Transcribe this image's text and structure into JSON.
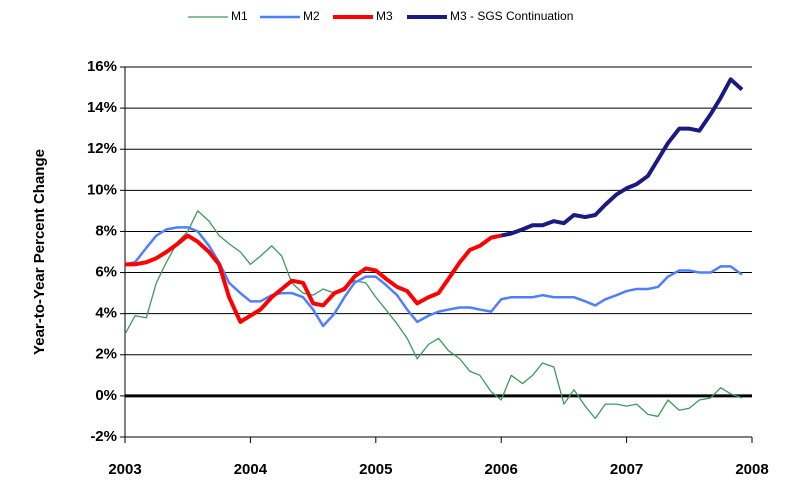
{
  "chart_data": {
    "type": "line",
    "ylabel": "Year-to-Year Percent Change",
    "x": [
      2003.0,
      2003.08,
      2003.17,
      2003.25,
      2003.33,
      2003.42,
      2003.5,
      2003.58,
      2003.67,
      2003.75,
      2003.83,
      2003.92,
      2004.0,
      2004.08,
      2004.17,
      2004.25,
      2004.33,
      2004.42,
      2004.5,
      2004.58,
      2004.67,
      2004.75,
      2004.83,
      2004.92,
      2005.0,
      2005.08,
      2005.17,
      2005.25,
      2005.33,
      2005.42,
      2005.5,
      2005.58,
      2005.67,
      2005.75,
      2005.83,
      2005.92,
      2006.0,
      2006.08,
      2006.17,
      2006.25,
      2006.33,
      2006.42,
      2006.5,
      2006.58,
      2006.67,
      2006.75,
      2006.83,
      2006.92,
      2007.0,
      2007.08,
      2007.17,
      2007.25,
      2007.33,
      2007.42,
      2007.5,
      2007.58,
      2007.67,
      2007.75,
      2007.83,
      2007.92
    ],
    "series": [
      {
        "name": "M1",
        "color": "#3c9a5c",
        "values": [
          3.0,
          3.9,
          3.8,
          5.5,
          6.5,
          7.5,
          8.0,
          9.0,
          8.5,
          7.8,
          7.4,
          7.0,
          6.4,
          6.8,
          7.3,
          6.8,
          5.5,
          5.0,
          4.9,
          5.2,
          5.0,
          5.3,
          5.6,
          5.5,
          4.8,
          4.2,
          3.5,
          2.8,
          1.8,
          2.5,
          2.8,
          2.2,
          1.8,
          1.2,
          1.0,
          0.2,
          -0.2,
          1.0,
          0.6,
          1.0,
          1.6,
          1.4,
          -0.4,
          0.3,
          -0.5,
          -1.1,
          -0.4,
          -0.4,
          -0.5,
          -0.4,
          -0.9,
          -1.0,
          -0.2,
          -0.7,
          -0.6,
          -0.2,
          -0.1,
          0.4,
          0.1,
          -0.1
        ]
      },
      {
        "name": "M2",
        "color": "#4d7fff",
        "values": [
          6.4,
          6.5,
          7.2,
          7.8,
          8.1,
          8.2,
          8.2,
          8.0,
          7.3,
          6.5,
          5.5,
          5.0,
          4.6,
          4.6,
          4.9,
          5.0,
          5.0,
          4.8,
          4.2,
          3.4,
          4.0,
          4.8,
          5.5,
          5.8,
          5.8,
          5.4,
          4.9,
          4.2,
          3.6,
          3.9,
          4.1,
          4.2,
          4.3,
          4.3,
          4.2,
          4.1,
          4.7,
          4.8,
          4.8,
          4.8,
          4.9,
          4.8,
          4.8,
          4.8,
          4.6,
          4.4,
          4.7,
          4.9,
          5.1,
          5.2,
          5.2,
          5.3,
          5.8,
          6.1,
          6.1,
          6.0,
          6.0,
          6.3,
          6.3,
          5.9
        ]
      },
      {
        "name": "M3",
        "color": "#ff0000",
        "values": [
          6.4,
          6.4,
          6.5,
          6.7,
          7.0,
          7.4,
          7.8,
          7.5,
          7.0,
          6.4,
          4.8,
          3.6,
          3.9,
          4.2,
          4.8,
          5.2,
          5.6,
          5.5,
          4.5,
          4.4,
          5.0,
          5.2,
          5.8,
          6.2,
          6.1,
          5.7,
          5.3,
          5.1,
          4.5,
          4.8,
          5.0,
          5.7,
          6.5,
          7.1,
          7.3,
          7.7,
          7.8,
          null,
          null,
          null,
          null,
          null,
          null,
          null,
          null,
          null,
          null,
          null,
          null,
          null,
          null,
          null,
          null,
          null,
          null,
          null,
          null,
          null,
          null,
          null
        ]
      },
      {
        "name": "M3 - SGS Continuation",
        "color": "#1a1a80",
        "values": [
          null,
          null,
          null,
          null,
          null,
          null,
          null,
          null,
          null,
          null,
          null,
          null,
          null,
          null,
          null,
          null,
          null,
          null,
          null,
          null,
          null,
          null,
          null,
          null,
          null,
          null,
          null,
          null,
          null,
          null,
          null,
          null,
          null,
          null,
          null,
          null,
          7.8,
          7.9,
          8.1,
          8.3,
          8.3,
          8.5,
          8.4,
          8.8,
          8.7,
          8.8,
          9.3,
          9.8,
          10.1,
          10.3,
          10.7,
          11.5,
          12.3,
          13.0,
          13.0,
          12.9,
          13.7,
          14.5,
          15.4,
          14.9
        ]
      }
    ],
    "xlim": [
      2003,
      2008
    ],
    "xticks": [
      2003,
      2004,
      2005,
      2006,
      2007,
      2008
    ],
    "ylim": [
      -2,
      16
    ],
    "yticks": [
      {
        "value": -2,
        "label": "-2%"
      },
      {
        "value": 0,
        "label": "0%"
      },
      {
        "value": 2,
        "label": "2%"
      },
      {
        "value": 4,
        "label": "4%"
      },
      {
        "value": 6,
        "label": "6%"
      },
      {
        "value": 8,
        "label": "8%"
      },
      {
        "value": 10,
        "label": "10%"
      },
      {
        "value": 12,
        "label": "12%"
      },
      {
        "value": 14,
        "label": "14%"
      },
      {
        "value": 16,
        "label": "16%"
      }
    ],
    "grid": true,
    "legend": "top"
  }
}
